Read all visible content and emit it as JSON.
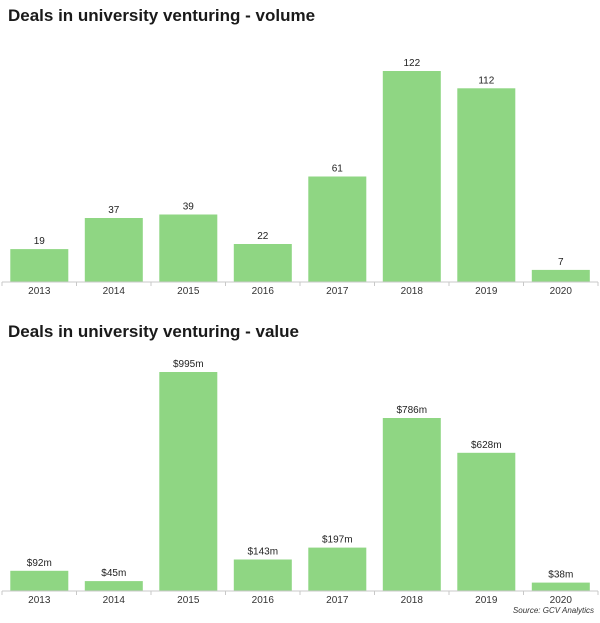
{
  "chart_data": [
    {
      "type": "bar",
      "title": "Deals in university venturing - volume",
      "categories": [
        "2013",
        "2014",
        "2015",
        "2016",
        "2017",
        "2018",
        "2019",
        "2020"
      ],
      "values": [
        19,
        37,
        39,
        22,
        61,
        122,
        112,
        7
      ],
      "value_labels": [
        "19",
        "37",
        "39",
        "22",
        "61",
        "122",
        "112",
        "7"
      ],
      "xlabel": "",
      "ylabel": "",
      "ylim": [
        0,
        122
      ],
      "grid": false,
      "bar_color": "#8fd683"
    },
    {
      "type": "bar",
      "title": "Deals in university venturing - value",
      "categories": [
        "2013",
        "2014",
        "2015",
        "2016",
        "2017",
        "2018",
        "2019",
        "2020"
      ],
      "values": [
        92,
        45,
        995,
        143,
        197,
        786,
        628,
        38
      ],
      "value_labels": [
        "$92m",
        "$45m",
        "$995m",
        "$143m",
        "$197m",
        "$786m",
        "$628m",
        "$38m"
      ],
      "xlabel": "",
      "ylabel": "",
      "ylim": [
        0,
        995
      ],
      "grid": false,
      "bar_color": "#8fd683"
    }
  ],
  "source": "Source: GCV Analytics"
}
